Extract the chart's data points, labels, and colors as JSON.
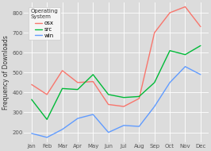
{
  "months": [
    "Jan",
    "Feb",
    "Mar",
    "Apr",
    "May",
    "Jun",
    "Jul",
    "Aug",
    "Sep",
    "Oct",
    "Nov",
    "Dec"
  ],
  "osx": [
    440,
    390,
    510,
    450,
    455,
    340,
    330,
    370,
    700,
    800,
    830,
    730
  ],
  "src": [
    365,
    265,
    420,
    415,
    490,
    390,
    375,
    380,
    450,
    610,
    590,
    635
  ],
  "win": [
    195,
    175,
    215,
    270,
    290,
    200,
    235,
    230,
    330,
    450,
    530,
    490
  ],
  "colors": {
    "osx": "#F8766D",
    "src": "#00BA38",
    "win": "#619CFF"
  },
  "legend_title": "Operating\nSystem",
  "legend_labels": [
    "osx",
    "src",
    "win"
  ],
  "ylabel": "Frequency of Downloads",
  "ylim": [
    150,
    850
  ],
  "yticks": [
    200,
    300,
    400,
    500,
    600,
    700,
    800
  ],
  "bg_color": "#DCDCDC",
  "grid_color": "#FFFFFF",
  "legend_bg": "#E8E8E8",
  "tick_fontsize": 5,
  "label_fontsize": 5.5,
  "legend_fontsize": 5,
  "linewidth": 1.0
}
